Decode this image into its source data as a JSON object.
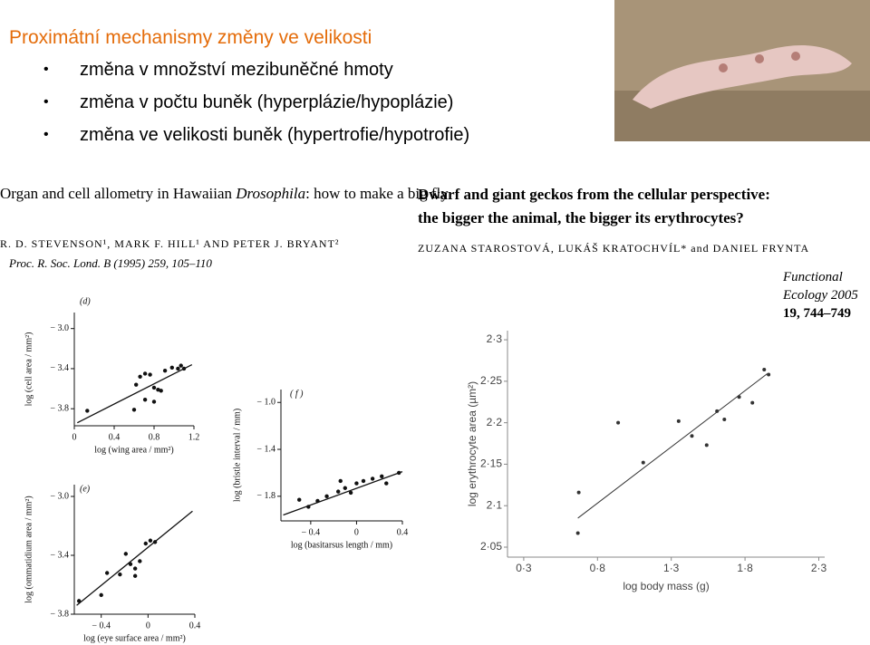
{
  "slide": {
    "title": "Proximátní mechanismy změny ve velikosti",
    "bullets": [
      "změna v množství mezibuněčné hmoty",
      "změna v počtu buněk (hyperplázie/hypoplázie)",
      "změna ve velikosti buněk (hypertrofie/hypotrofie)"
    ]
  },
  "papers": [
    {
      "title": [
        "Organ and cell allometry in Hawaiian",
        "Drosophila",
        ": how to make a big fly"
      ],
      "authors": "R. D. STEVENSON¹, MARK F. HILL¹ AND PETER J. BRYANT²",
      "journal": "Proc. R. Soc. Lond. B (1995) 259, 105–110"
    },
    {
      "title": [
        "Dwarf and giant geckos from the cellular perspective:",
        "the bigger the animal, the bigger its erythrocytes?"
      ],
      "authors": "ZUZANA STAROSTOVÁ, LUKÁŠ KRATOCHVÍL* and DANIEL FRYNTA",
      "journal": [
        "Functional",
        "Ecology 2005",
        "19, 744–749"
      ]
    }
  ],
  "chart_data": [
    {
      "type": "scatter",
      "panel_label": "(d)",
      "x_label": "log (wing area / mm²)",
      "y_label": "log (cell area / mm²)",
      "x": [
        0.13,
        0.6,
        0.62,
        0.66,
        0.71,
        0.76,
        0.8,
        0.84,
        0.71,
        0.8,
        0.91,
        0.98,
        1.04,
        1.07,
        1.1,
        0.87
      ],
      "values": [
        -3.82,
        -3.81,
        -3.56,
        -3.48,
        -3.45,
        -3.46,
        -3.59,
        -3.61,
        -3.71,
        -3.73,
        -3.42,
        -3.39,
        -3.4,
        -3.37,
        -3.4,
        -3.62
      ],
      "xlim": [
        0,
        1.2
      ],
      "ylim": [
        -3.97,
        -2.84
      ],
      "xticks": [
        0,
        0.4,
        0.8,
        1.2
      ],
      "yticks": [
        {
          "value": -3.0,
          "label": "− 3.0"
        },
        {
          "value": -3.4,
          "label": "− 3.4"
        },
        {
          "value": -3.8,
          "label": "− 3.8"
        }
      ],
      "fit": {
        "x": [
          0.03,
          1.18
        ],
        "y": [
          -3.94,
          -3.36
        ]
      },
      "color": "#111111"
    },
    {
      "type": "scatter",
      "panel_label": "(e)",
      "x_label": "log (eye surface area / mm²)",
      "y_label": "log (ommatidium area / mm²)",
      "x": [
        -0.59,
        -0.4,
        -0.35,
        -0.24,
        -0.19,
        -0.15,
        -0.11,
        -0.07,
        -0.02,
        0.02,
        0.06,
        -0.11
      ],
      "values": [
        -3.71,
        -3.67,
        -3.52,
        -3.53,
        -3.39,
        -3.46,
        -3.49,
        -3.44,
        -3.32,
        -3.3,
        -3.31,
        -3.54
      ],
      "xlim": [
        -0.63,
        0.4
      ],
      "ylim": [
        -3.8,
        -2.92
      ],
      "xticks": [
        {
          "value": -0.4,
          "label": "− 0.4"
        },
        0,
        0.4
      ],
      "yticks": [
        {
          "value": -3.0,
          "label": "− 3.0"
        },
        {
          "value": -3.4,
          "label": "− 3.4"
        },
        {
          "value": -3.8,
          "label": "− 3.8"
        }
      ],
      "fit": {
        "x": [
          -0.61,
          0.38
        ],
        "y": [
          -3.74,
          -3.1
        ]
      },
      "color": "#111111"
    },
    {
      "type": "scatter",
      "panel_label": "( f )",
      "x_label": "log (basitarsus length / mm)",
      "y_label": "log (bristle interval / mm)",
      "x": [
        -0.5,
        -0.42,
        -0.34,
        -0.26,
        -0.16,
        -0.1,
        -0.05,
        -0.14,
        0,
        0.06,
        0.14,
        0.22,
        0.26,
        0.37
      ],
      "values": [
        -1.83,
        -1.89,
        -1.84,
        -1.8,
        -1.76,
        -1.73,
        -1.77,
        -1.67,
        -1.69,
        -1.67,
        -1.65,
        -1.63,
        -1.69,
        -1.6
      ],
      "xlim": [
        -0.66,
        0.4
      ],
      "ylim": [
        -2.01,
        -0.89
      ],
      "xticks": [
        {
          "value": -0.4,
          "label": "− 0.4"
        },
        0,
        0.4
      ],
      "yticks": [
        {
          "value": -1.0,
          "label": "− 1.0"
        },
        {
          "value": -1.4,
          "label": "− 1.4"
        },
        {
          "value": -1.8,
          "label": "− 1.8"
        }
      ],
      "fit": {
        "x": [
          -0.64,
          0.4
        ],
        "y": [
          -1.96,
          -1.59
        ]
      },
      "color": "#111111"
    },
    {
      "type": "scatter",
      "x_label": "log body mass (g)",
      "y_label": "log erythrocyte area (µm²)",
      "x": [
        0.667,
        0.673,
        0.94,
        1.11,
        1.35,
        1.44,
        1.54,
        1.61,
        1.66,
        1.76,
        1.85,
        1.93,
        1.96
      ],
      "values": [
        2.067,
        2.116,
        2.2,
        2.152,
        2.202,
        2.184,
        2.173,
        2.214,
        2.204,
        2.231,
        2.224,
        2.264,
        2.258
      ],
      "xlim": [
        0.19,
        2.34
      ],
      "ylim": [
        2.038,
        2.311
      ],
      "xticks": [
        {
          "value": 0.3,
          "label": "0·3"
        },
        {
          "value": 0.8,
          "label": "0·8"
        },
        {
          "value": 1.3,
          "label": "1·3"
        },
        {
          "value": 1.8,
          "label": "1·8"
        },
        {
          "value": 2.3,
          "label": "2·3"
        }
      ],
      "yticks": [
        {
          "value": 2.05,
          "label": "2·05"
        },
        {
          "value": 2.1,
          "label": "2·1"
        },
        {
          "value": 2.15,
          "label": "2·15"
        },
        {
          "value": 2.2,
          "label": "2·2"
        },
        {
          "value": 2.25,
          "label": "2·25"
        },
        {
          "value": 2.3,
          "label": "2·3"
        }
      ],
      "fit": {
        "x": [
          0.667,
          1.95
        ],
        "y": [
          2.085,
          2.259
        ]
      },
      "color": "#333333"
    }
  ]
}
